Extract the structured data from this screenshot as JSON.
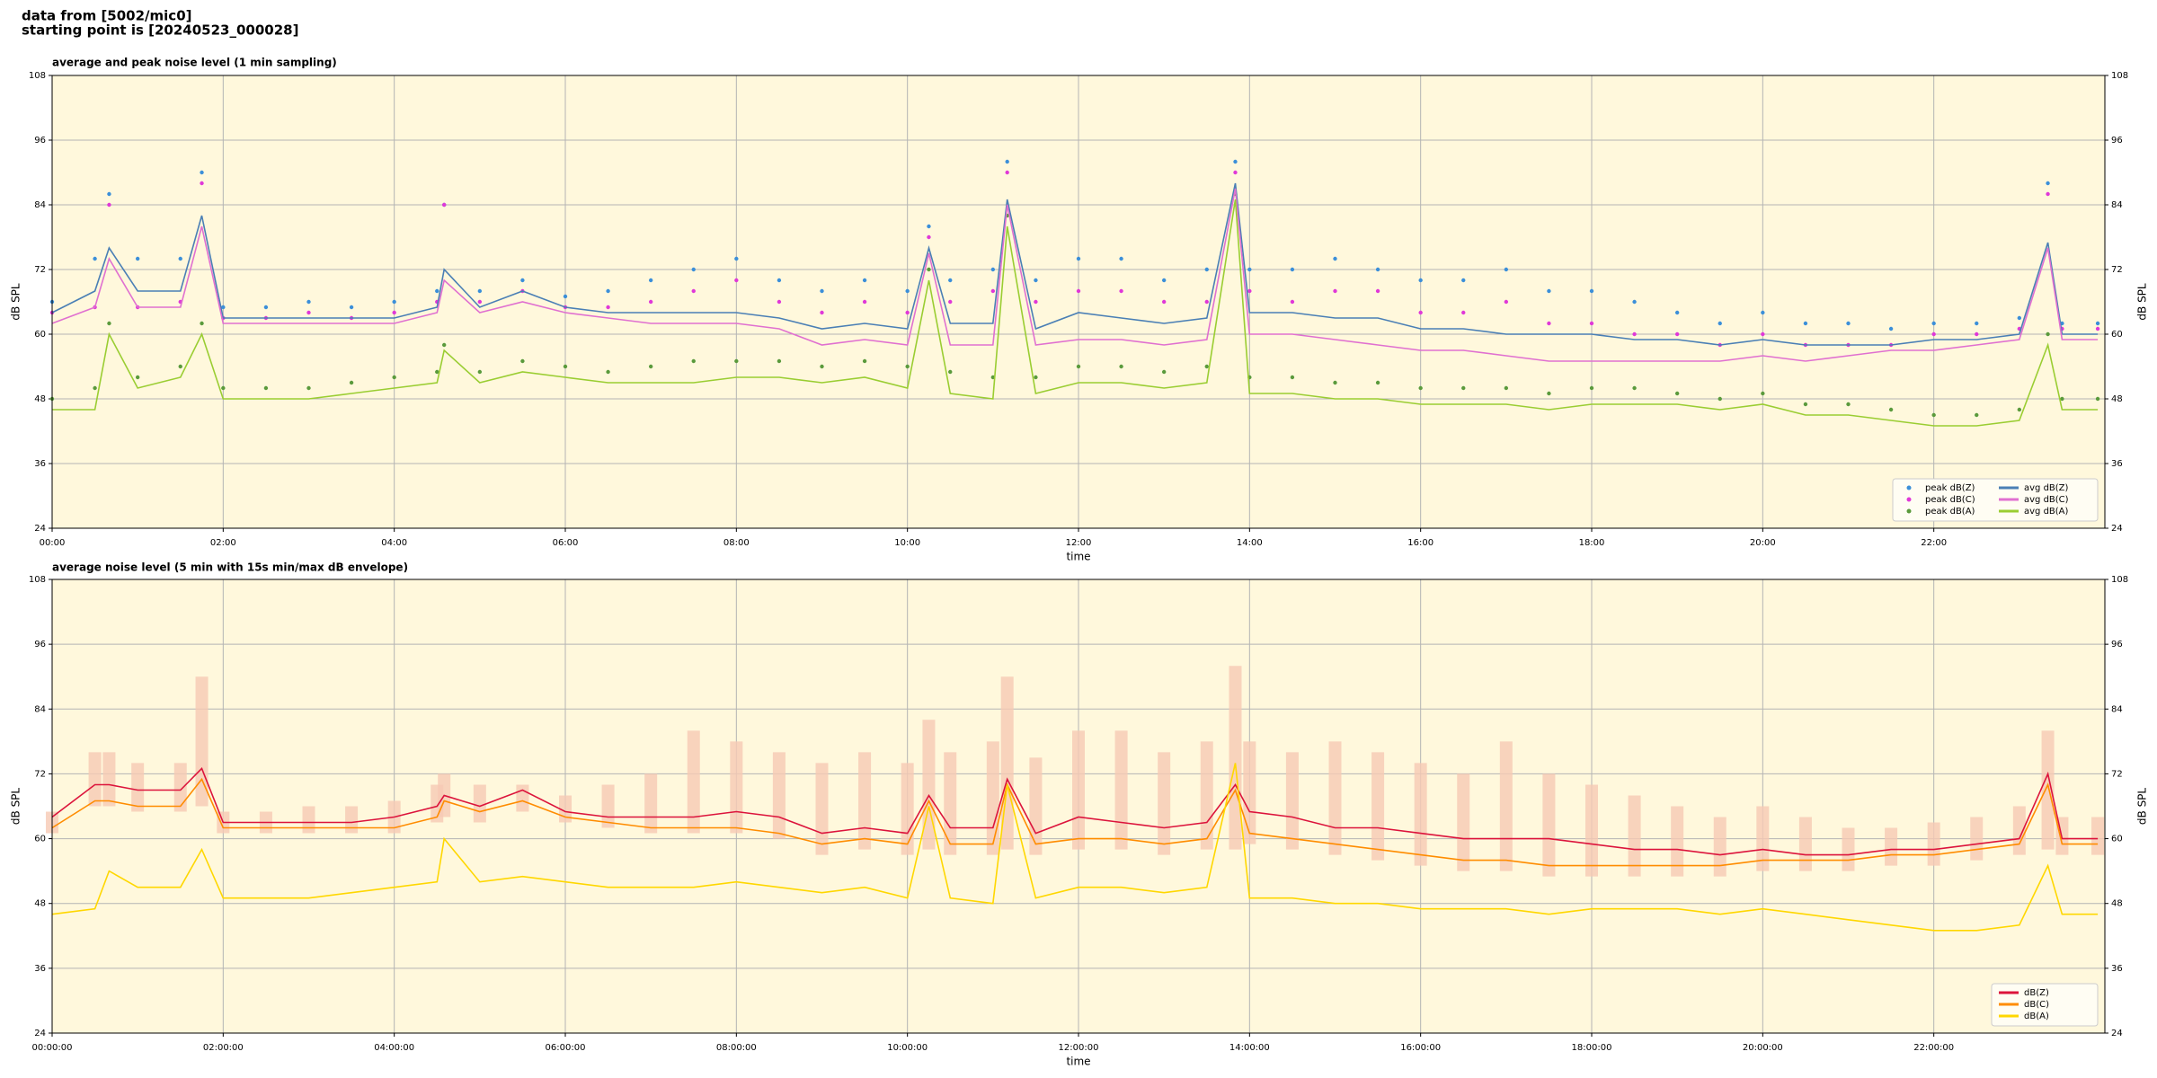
{
  "header": {
    "lines": [
      "data from [5002/mic0]",
      "starting point is [20240523_000028]"
    ]
  },
  "chart_data": [
    {
      "type": "line",
      "title": "average and peak noise level (1 min sampling)",
      "xlabel": "time",
      "ylabel": "dB SPL",
      "x": [
        "00:00",
        "00:30",
        "00:40",
        "01:00",
        "01:30",
        "01:45",
        "02:00",
        "02:30",
        "03:00",
        "03:30",
        "04:00",
        "04:30",
        "04:35",
        "05:00",
        "05:30",
        "06:00",
        "06:30",
        "07:00",
        "07:30",
        "08:00",
        "08:30",
        "09:00",
        "09:30",
        "10:00",
        "10:15",
        "10:30",
        "11:00",
        "11:10",
        "11:30",
        "12:00",
        "12:30",
        "13:00",
        "13:30",
        "13:50",
        "14:00",
        "14:30",
        "15:00",
        "15:30",
        "16:00",
        "16:30",
        "17:00",
        "17:30",
        "18:00",
        "18:30",
        "19:00",
        "19:30",
        "20:00",
        "20:30",
        "21:00",
        "21:30",
        "22:00",
        "22:30",
        "23:00",
        "23:20",
        "23:30",
        "23:55"
      ],
      "xlim": [
        "00:00",
        "24:00"
      ],
      "xticks": [
        "00:00",
        "02:00",
        "04:00",
        "06:00",
        "08:00",
        "10:00",
        "12:00",
        "14:00",
        "16:00",
        "18:00",
        "20:00",
        "22:00"
      ],
      "ylim": [
        24,
        108
      ],
      "yticks": [
        24,
        36,
        48,
        60,
        72,
        84,
        96,
        108
      ],
      "grid": true,
      "legend": "lower right",
      "legend_columns": 2,
      "series": [
        {
          "name": "peak dB(Z)",
          "color": "#3b8fd9",
          "style": "dots",
          "values": [
            66,
            74,
            86,
            74,
            74,
            90,
            65,
            65,
            66,
            65,
            66,
            68,
            84,
            68,
            70,
            67,
            68,
            70,
            72,
            74,
            70,
            68,
            70,
            68,
            80,
            70,
            72,
            92,
            70,
            74,
            74,
            70,
            72,
            92,
            72,
            72,
            74,
            72,
            70,
            70,
            72,
            68,
            68,
            66,
            64,
            62,
            64,
            62,
            62,
            61,
            62,
            62,
            63,
            88,
            62,
            62
          ]
        },
        {
          "name": "peak dB(C)",
          "color": "#e038d8",
          "style": "dots",
          "values": [
            64,
            65,
            84,
            65,
            66,
            88,
            63,
            63,
            64,
            63,
            64,
            66,
            84,
            66,
            68,
            65,
            65,
            66,
            68,
            70,
            66,
            64,
            66,
            64,
            78,
            66,
            68,
            90,
            66,
            68,
            68,
            66,
            66,
            90,
            68,
            66,
            68,
            68,
            64,
            64,
            66,
            62,
            62,
            60,
            60,
            58,
            60,
            58,
            58,
            58,
            60,
            60,
            61,
            86,
            61,
            61
          ]
        },
        {
          "name": "peak dB(A)",
          "color": "#5a9a3c",
          "style": "dots",
          "values": [
            48,
            50,
            62,
            52,
            54,
            62,
            50,
            50,
            50,
            51,
            52,
            53,
            58,
            53,
            55,
            54,
            53,
            54,
            55,
            55,
            55,
            54,
            55,
            54,
            72,
            53,
            52,
            82,
            52,
            54,
            54,
            53,
            54,
            86,
            52,
            52,
            51,
            51,
            50,
            50,
            50,
            49,
            50,
            50,
            49,
            48,
            49,
            47,
            47,
            46,
            45,
            45,
            46,
            60,
            48,
            48
          ]
        },
        {
          "name": "avg dB(Z)",
          "color": "#4a7fb5",
          "style": "line",
          "values": [
            64,
            68,
            76,
            68,
            68,
            82,
            63,
            63,
            63,
            63,
            63,
            65,
            72,
            65,
            68,
            65,
            64,
            64,
            64,
            64,
            63,
            61,
            62,
            61,
            76,
            62,
            62,
            85,
            61,
            64,
            63,
            62,
            63,
            88,
            64,
            64,
            63,
            63,
            61,
            61,
            60,
            60,
            60,
            59,
            59,
            58,
            59,
            58,
            58,
            58,
            59,
            59,
            60,
            77,
            60,
            60
          ]
        },
        {
          "name": "avg dB(C)",
          "color": "#e070d0",
          "style": "line",
          "values": [
            62,
            65,
            74,
            65,
            65,
            80,
            62,
            62,
            62,
            62,
            62,
            64,
            70,
            64,
            66,
            64,
            63,
            62,
            62,
            62,
            61,
            58,
            59,
            58,
            75,
            58,
            58,
            84,
            58,
            59,
            59,
            58,
            59,
            87,
            60,
            60,
            59,
            58,
            57,
            57,
            56,
            55,
            55,
            55,
            55,
            55,
            56,
            55,
            56,
            57,
            57,
            58,
            59,
            76,
            59,
            59
          ]
        },
        {
          "name": "avg dB(A)",
          "color": "#9acd32",
          "style": "line",
          "values": [
            46,
            46,
            60,
            50,
            52,
            60,
            48,
            48,
            48,
            49,
            50,
            51,
            57,
            51,
            53,
            52,
            51,
            51,
            51,
            52,
            52,
            51,
            52,
            50,
            70,
            49,
            48,
            80,
            49,
            51,
            51,
            50,
            51,
            85,
            49,
            49,
            48,
            48,
            47,
            47,
            47,
            46,
            47,
            47,
            47,
            46,
            47,
            45,
            45,
            44,
            43,
            43,
            44,
            58,
            46,
            46
          ]
        }
      ]
    },
    {
      "type": "line",
      "title": "average noise level (5 min with 15s min/max dB envelope)",
      "xlabel": "time",
      "ylabel": "dB SPL",
      "x": [
        "00:00:00",
        "00:30:00",
        "00:40:00",
        "01:00:00",
        "01:30:00",
        "01:45:00",
        "02:00:00",
        "02:30:00",
        "03:00:00",
        "03:30:00",
        "04:00:00",
        "04:30:00",
        "04:35:00",
        "05:00:00",
        "05:30:00",
        "06:00:00",
        "06:30:00",
        "07:00:00",
        "07:30:00",
        "08:00:00",
        "08:30:00",
        "09:00:00",
        "09:30:00",
        "10:00:00",
        "10:15:00",
        "10:30:00",
        "11:00:00",
        "11:10:00",
        "11:30:00",
        "12:00:00",
        "12:30:00",
        "13:00:00",
        "13:30:00",
        "13:50:00",
        "14:00:00",
        "14:30:00",
        "15:00:00",
        "15:30:00",
        "16:00:00",
        "16:30:00",
        "17:00:00",
        "17:30:00",
        "18:00:00",
        "18:30:00",
        "19:00:00",
        "19:30:00",
        "20:00:00",
        "20:30:00",
        "21:00:00",
        "21:30:00",
        "22:00:00",
        "22:30:00",
        "23:00:00",
        "23:20:00",
        "23:30:00",
        "23:55:00"
      ],
      "xlim": [
        "00:00:00",
        "24:00:00"
      ],
      "xticks": [
        "00:00:00",
        "02:00:00",
        "04:00:00",
        "06:00:00",
        "08:00:00",
        "10:00:00",
        "12:00:00",
        "14:00:00",
        "16:00:00",
        "18:00:00",
        "20:00:00",
        "22:00:00"
      ],
      "ylim": [
        24,
        108
      ],
      "yticks": [
        24,
        36,
        48,
        60,
        72,
        84,
        96,
        108
      ],
      "grid": true,
      "legend": "lower right",
      "legend_columns": 1,
      "envelope": {
        "color": "#f6c9b4",
        "min": [
          61,
          66,
          66,
          65,
          65,
          66,
          61,
          61,
          61,
          61,
          61,
          63,
          64,
          63,
          65,
          63,
          62,
          61,
          61,
          61,
          60,
          57,
          58,
          57,
          58,
          57,
          57,
          58,
          57,
          58,
          58,
          57,
          58,
          58,
          59,
          58,
          57,
          56,
          55,
          54,
          54,
          53,
          53,
          53,
          53,
          53,
          54,
          54,
          54,
          55,
          55,
          56,
          57,
          58,
          57,
          57
        ],
        "max": [
          65,
          76,
          76,
          74,
          74,
          90,
          65,
          65,
          66,
          66,
          67,
          70,
          72,
          70,
          70,
          68,
          70,
          72,
          80,
          78,
          76,
          74,
          76,
          74,
          82,
          76,
          78,
          90,
          75,
          80,
          80,
          76,
          78,
          92,
          78,
          76,
          78,
          76,
          74,
          72,
          78,
          72,
          70,
          68,
          66,
          64,
          66,
          64,
          62,
          62,
          63,
          64,
          66,
          80,
          64,
          64
        ]
      },
      "series": [
        {
          "name": "dB(Z)",
          "color": "#dc143c",
          "style": "line",
          "values": [
            64,
            70,
            70,
            69,
            69,
            73,
            63,
            63,
            63,
            63,
            64,
            66,
            68,
            66,
            69,
            65,
            64,
            64,
            64,
            65,
            64,
            61,
            62,
            61,
            68,
            62,
            62,
            71,
            61,
            64,
            63,
            62,
            63,
            70,
            65,
            64,
            62,
            62,
            61,
            60,
            60,
            60,
            59,
            58,
            58,
            57,
            58,
            57,
            57,
            58,
            58,
            59,
            60,
            72,
            60,
            60
          ]
        },
        {
          "name": "dB(C)",
          "color": "#ff8c00",
          "style": "line",
          "values": [
            62,
            67,
            67,
            66,
            66,
            71,
            62,
            62,
            62,
            62,
            62,
            64,
            67,
            65,
            67,
            64,
            63,
            62,
            62,
            62,
            61,
            59,
            60,
            59,
            67,
            59,
            59,
            70,
            59,
            60,
            60,
            59,
            60,
            69,
            61,
            60,
            59,
            58,
            57,
            56,
            56,
            55,
            55,
            55,
            55,
            55,
            56,
            56,
            56,
            57,
            57,
            58,
            59,
            70,
            59,
            59
          ]
        },
        {
          "name": "dB(A)",
          "color": "#ffd700",
          "style": "line",
          "values": [
            46,
            47,
            54,
            51,
            51,
            58,
            49,
            49,
            49,
            50,
            51,
            52,
            60,
            52,
            53,
            52,
            51,
            51,
            51,
            52,
            51,
            50,
            51,
            49,
            66,
            49,
            48,
            70,
            49,
            51,
            51,
            50,
            51,
            74,
            49,
            49,
            48,
            48,
            47,
            47,
            47,
            46,
            47,
            47,
            47,
            46,
            47,
            46,
            45,
            44,
            43,
            43,
            44,
            55,
            46,
            46
          ]
        }
      ]
    }
  ]
}
